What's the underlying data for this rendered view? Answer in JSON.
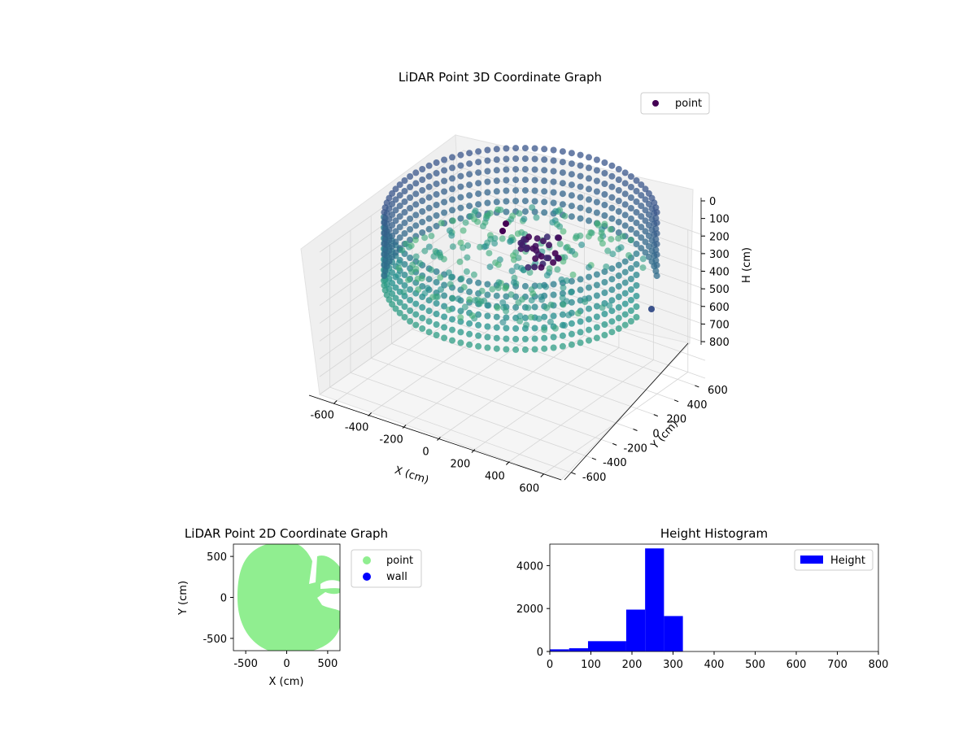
{
  "chart_data": [
    {
      "type": "scatter",
      "projection": "3d",
      "title": "LiDAR Point 3D Coordinate Graph",
      "xlabel": "X (cm)",
      "ylabel": "Y (cm)",
      "zlabel": "H (cm)",
      "xlim": [
        -700,
        700
      ],
      "ylim": [
        -700,
        700
      ],
      "zlim": [
        0,
        800
      ],
      "z_axis_inverted": true,
      "xticks": [
        -600,
        -400,
        -200,
        0,
        200,
        400,
        600
      ],
      "yticks": [
        -600,
        -400,
        -200,
        0,
        200,
        400,
        600
      ],
      "zticks": [
        0,
        100,
        200,
        300,
        400,
        500,
        600,
        700,
        800
      ],
      "grid": true,
      "colormap": "viridis",
      "legend": {
        "entries": [
          "point"
        ],
        "placement": "top-right"
      },
      "series": [
        {
          "name": "point",
          "description_of_shape": "ring of points along wall (radius ~600) spanning heights 200-300, with floor patch points near height 250 and a notch opening toward +X",
          "color": "#440154"
        }
      ],
      "pane_color": "#f2f2f2"
    },
    {
      "type": "scatter",
      "title": "LiDAR Point 2D Coordinate Graph",
      "xlabel": "X (cm)",
      "ylabel": "Y (cm)",
      "xlim": [
        -650,
        650
      ],
      "ylim": [
        -650,
        650
      ],
      "xticks": [
        -500,
        0,
        500
      ],
      "yticks": [
        500,
        0,
        -500
      ],
      "legend": {
        "entries": [
          "point",
          "wall"
        ],
        "placement": "outside-right"
      },
      "series": [
        {
          "name": "point",
          "color": "#90ee90"
        },
        {
          "name": "wall",
          "color": "#0000ff"
        }
      ]
    },
    {
      "type": "bar",
      "subtype": "histogram",
      "title": "Height Histogram",
      "xlabel": "",
      "ylabel": "",
      "xlim": [
        0,
        800
      ],
      "ylim": [
        0,
        5000
      ],
      "xticks": [
        0,
        100,
        200,
        300,
        400,
        500,
        600,
        700,
        800
      ],
      "yticks": [
        0,
        2000,
        4000
      ],
      "legend": {
        "entries": [
          "Height"
        ],
        "placement": "top-right"
      },
      "color": "#0000ff",
      "bins": [
        {
          "x0": 0,
          "x1": 47,
          "count": 100
        },
        {
          "x0": 47,
          "x1": 93,
          "count": 150
        },
        {
          "x0": 93,
          "x1": 186,
          "count": 480
        },
        {
          "x0": 186,
          "x1": 232,
          "count": 1950
        },
        {
          "x0": 232,
          "x1": 278,
          "count": 4800
        },
        {
          "x0": 278,
          "x1": 324,
          "count": 1650
        }
      ],
      "series": [
        {
          "name": "Height"
        }
      ]
    }
  ]
}
